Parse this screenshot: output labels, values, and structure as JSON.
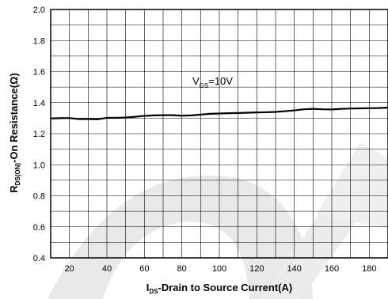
{
  "chart_data": {
    "type": "line",
    "xlim": [
      10,
      190
    ],
    "ylim": [
      0.4,
      2.0
    ],
    "x_ticks": [
      20,
      40,
      60,
      80,
      100,
      120,
      140,
      160,
      180
    ],
    "y_ticks": [
      0.4,
      0.6,
      0.8,
      1.0,
      1.2,
      1.4,
      1.6,
      1.8,
      2.0
    ],
    "y_tick_labels": [
      "0.4",
      "0.6",
      "0.8",
      "1.0",
      "1.2",
      "1.4",
      "1.6",
      "1.8",
      "2.0"
    ],
    "x_tick_labels": [
      "20",
      "40",
      "60",
      "80",
      "100",
      "120",
      "140",
      "160",
      "180"
    ],
    "grid": true,
    "xlabel": {
      "main": "I",
      "sub": "DS",
      "rest": "-Drain to Source Current(A)"
    },
    "ylabel": {
      "main": "R",
      "sub": "DS(ON)",
      "rest": "-On Resistance(",
      "unit": "Ω",
      "close": ")"
    },
    "annotation": {
      "main": "V",
      "sub": "GS",
      "rest": "=10V"
    },
    "series": [
      {
        "x": [
          10,
          15,
          20,
          25,
          30,
          35,
          40,
          45,
          50,
          55,
          60,
          65,
          70,
          75,
          80,
          85,
          90,
          95,
          100,
          105,
          110,
          115,
          120,
          125,
          130,
          135,
          140,
          145,
          150,
          155,
          160,
          165,
          170,
          175,
          180,
          185,
          190
        ],
        "y": [
          1.298,
          1.3,
          1.301,
          1.294,
          1.294,
          1.293,
          1.302,
          1.302,
          1.304,
          1.309,
          1.315,
          1.318,
          1.319,
          1.319,
          1.316,
          1.318,
          1.323,
          1.328,
          1.33,
          1.332,
          1.333,
          1.335,
          1.337,
          1.338,
          1.34,
          1.345,
          1.35,
          1.357,
          1.36,
          1.357,
          1.356,
          1.36,
          1.362,
          1.363,
          1.364,
          1.365,
          1.368
        ]
      }
    ]
  }
}
